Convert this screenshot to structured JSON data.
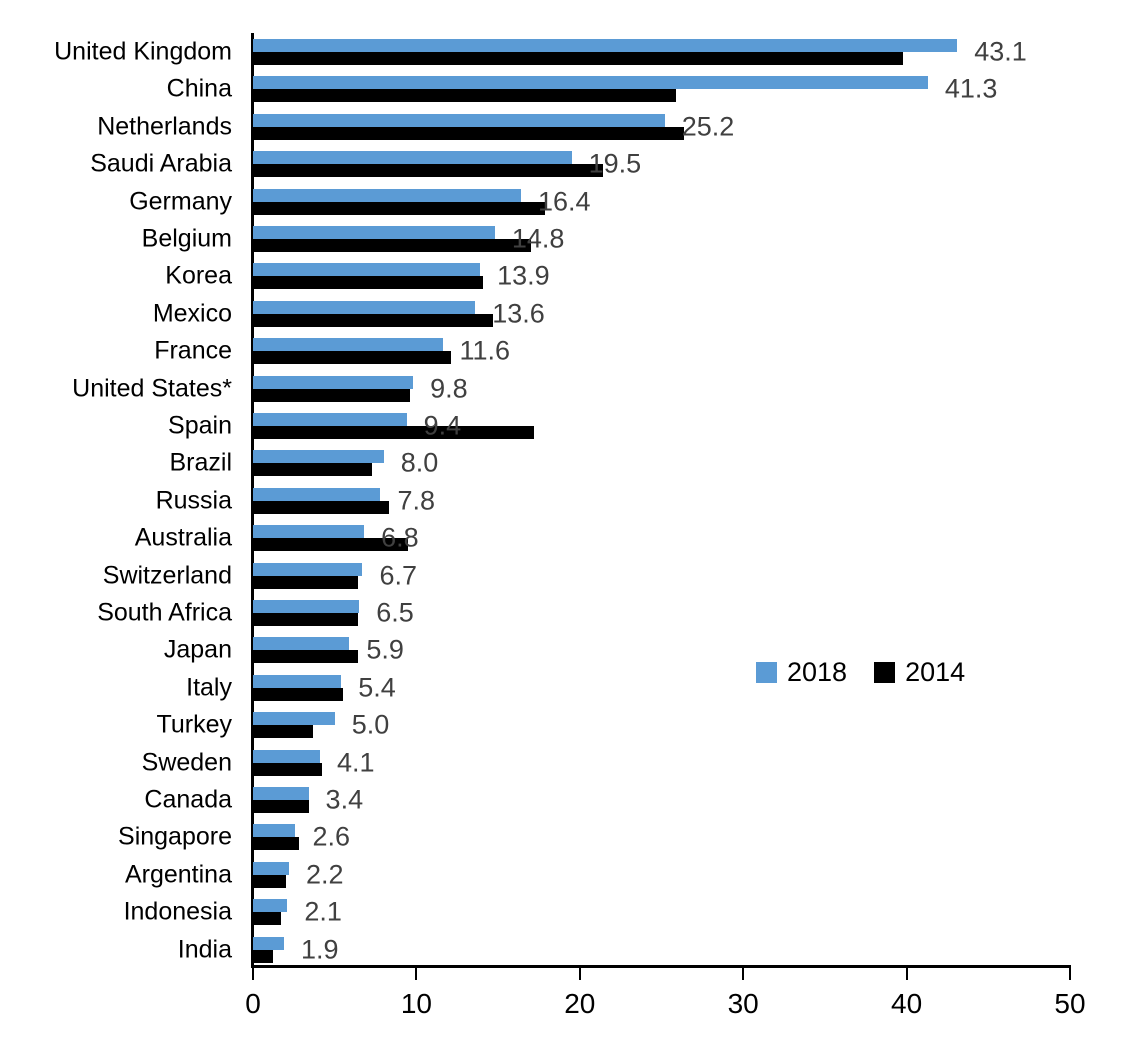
{
  "chart_data": {
    "type": "bar",
    "orientation": "horizontal",
    "title": "",
    "xlabel": "",
    "ylabel": "",
    "categories": [
      "United Kingdom",
      "China",
      "Netherlands",
      "Saudi Arabia",
      "Germany",
      "Belgium",
      "Korea",
      "Mexico",
      "France",
      "United States*",
      "Spain",
      "Brazil",
      "Russia",
      "Australia",
      "Switzerland",
      "South Africa",
      "Japan",
      "Italy",
      "Turkey",
      "Sweden",
      "Canada",
      "Singapore",
      "Argentina",
      "Indonesia",
      "India"
    ],
    "series": [
      {
        "name": "2018",
        "color": "#5B9BD5",
        "data_labels_shown": true,
        "values": [
          43.1,
          41.3,
          25.2,
          19.5,
          16.4,
          14.8,
          13.9,
          13.6,
          11.6,
          9.8,
          9.4,
          8.0,
          7.8,
          6.8,
          6.7,
          6.5,
          5.9,
          5.4,
          5.0,
          4.1,
          3.4,
          2.6,
          2.2,
          2.1,
          1.9
        ]
      },
      {
        "name": "2014",
        "color": "#000000",
        "data_labels_shown": false,
        "values": [
          39.8,
          25.9,
          26.4,
          21.4,
          17.9,
          17.0,
          14.1,
          14.7,
          12.1,
          9.6,
          17.2,
          7.3,
          8.3,
          9.5,
          6.4,
          6.4,
          6.4,
          5.5,
          3.7,
          4.2,
          3.4,
          2.8,
          2.0,
          1.7,
          1.2
        ]
      }
    ],
    "xlim": [
      0,
      50
    ],
    "x_ticks": [
      "0",
      "10",
      "20",
      "30",
      "40",
      "50"
    ],
    "grid": false,
    "legend": {
      "entries": [
        "2018",
        "2014"
      ],
      "position": "middle-right"
    },
    "value_label_color": "#404040",
    "axis_color": "#000000"
  }
}
